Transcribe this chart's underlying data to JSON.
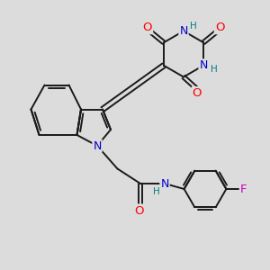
{
  "bg_color": "#dcdcdc",
  "bond_color": "#1a1a1a",
  "bond_width": 1.4,
  "atom_colors": {
    "O": "#ff0000",
    "N": "#0000cc",
    "H": "#008080",
    "F": "#cc00cc",
    "C": "#1a1a1a"
  },
  "font_size": 8.5,
  "figsize": [
    3.0,
    3.0
  ],
  "dpi": 100
}
